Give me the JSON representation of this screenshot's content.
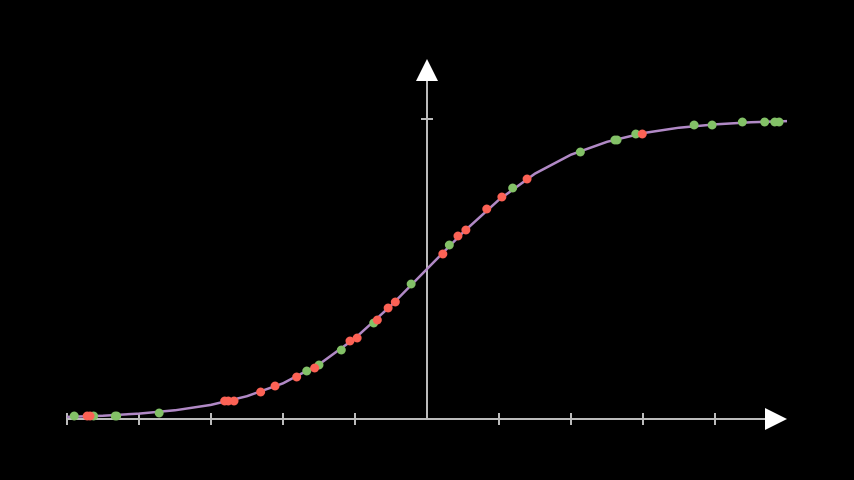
{
  "chart_data": {
    "type": "scatter",
    "xlim": [
      -5,
      5
    ],
    "ylim": [
      0,
      1.2
    ],
    "xticks": [
      -5,
      -4,
      -3,
      -2,
      -1,
      1,
      2,
      3,
      4
    ],
    "yticks": [
      1
    ],
    "axis_color": "#bbbbbb",
    "curve": {
      "color": "#b189c6",
      "x": [
        -5,
        -4.5,
        -4,
        -3.5,
        -3,
        -2.5,
        -2,
        -1.5,
        -1,
        -0.5,
        0,
        0.5,
        1,
        1.5,
        2,
        2.5,
        3,
        3.5,
        4,
        4.5,
        5
      ],
      "y": [
        0.007,
        0.011,
        0.018,
        0.029,
        0.047,
        0.076,
        0.119,
        0.182,
        0.269,
        0.378,
        0.5,
        0.622,
        0.731,
        0.818,
        0.881,
        0.924,
        0.953,
        0.971,
        0.982,
        0.989,
        0.993
      ]
    },
    "series": [
      {
        "color": "#83c167",
        "x": [
          -4.9,
          -4.63,
          -4.33,
          -4.31,
          -3.72,
          -1.67,
          -1.5,
          -1.19,
          -0.74,
          -0.22,
          0.31,
          1.19,
          2.13,
          2.61,
          2.64,
          2.9,
          3.71,
          3.96,
          4.38,
          4.69,
          4.83,
          4.89
        ],
        "values": [
          0.01,
          0.01,
          0.01,
          0.01,
          0.02,
          0.16,
          0.18,
          0.23,
          0.32,
          0.45,
          0.58,
          0.77,
          0.89,
          0.93,
          0.93,
          0.95,
          0.98,
          0.98,
          0.99,
          0.99,
          0.99,
          0.99
        ]
      },
      {
        "color": "#fc6255",
        "x": [
          -4.72,
          -4.68,
          -2.81,
          -2.76,
          -2.68,
          -2.31,
          -2.11,
          -1.81,
          -1.56,
          -1.07,
          -0.97,
          -0.69,
          -0.54,
          -0.44,
          0.22,
          0.43,
          0.54,
          0.83,
          1.04,
          1.39,
          2.99
        ],
        "values": [
          0.01,
          0.01,
          0.06,
          0.06,
          0.06,
          0.09,
          0.11,
          0.14,
          0.17,
          0.26,
          0.27,
          0.33,
          0.37,
          0.39,
          0.55,
          0.61,
          0.63,
          0.7,
          0.74,
          0.8,
          0.95
        ]
      }
    ]
  }
}
